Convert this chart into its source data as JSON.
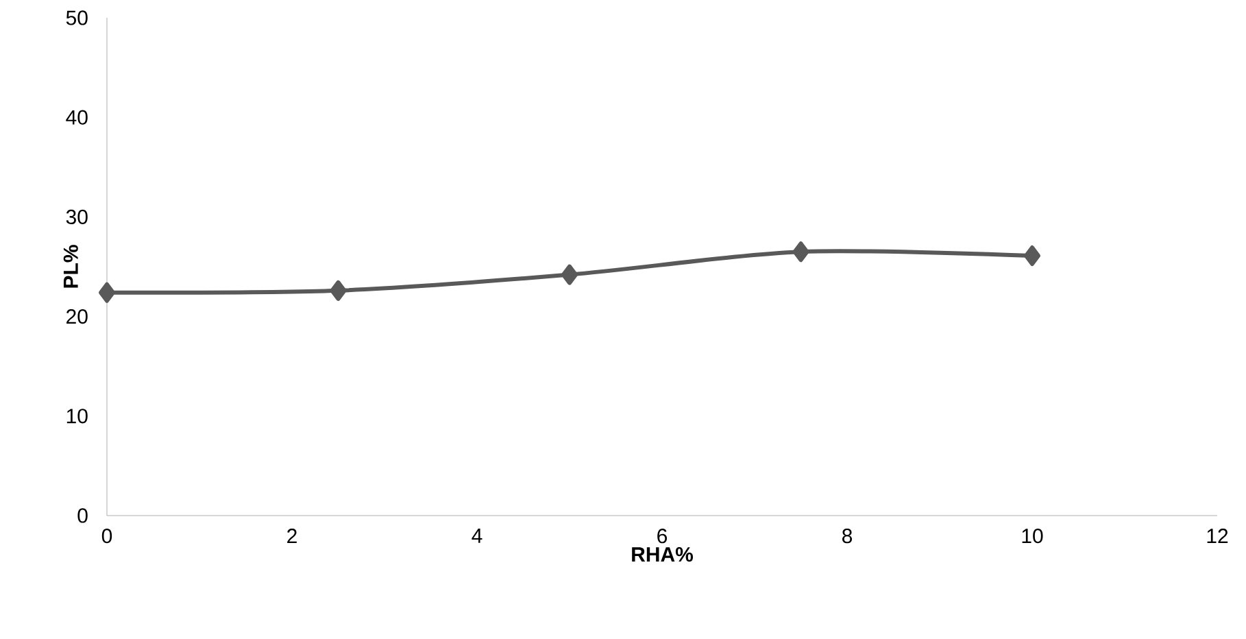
{
  "chart_data": {
    "type": "line",
    "xlabel": "RHA%",
    "ylabel": "PL%",
    "x": [
      0,
      2.5,
      5,
      7.5,
      10
    ],
    "series": [
      {
        "color": "#595959",
        "values": [
          22.4,
          22.6,
          24.2,
          26.5,
          26.1
        ]
      }
    ],
    "xlim": [
      0,
      12
    ],
    "xticks": [
      0,
      2,
      4,
      6,
      8,
      10,
      12
    ],
    "ylim": [
      0,
      50
    ],
    "yticks": [
      0,
      10,
      20,
      30,
      40,
      50
    ],
    "marker": "diamond",
    "line_style": "solid",
    "grid": false
  }
}
